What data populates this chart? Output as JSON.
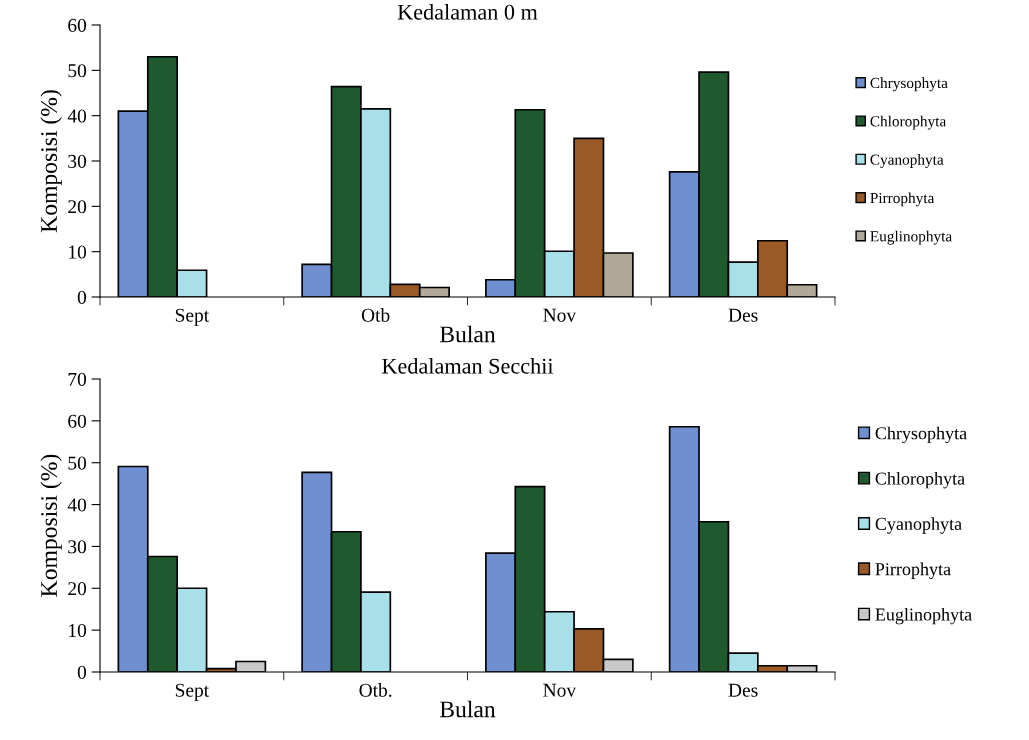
{
  "chart_data": [
    {
      "type": "bar",
      "title": "Kedalaman 0 m",
      "xlabel": "Bulan",
      "ylabel": "Komposisi (%)",
      "categories": [
        "Sept",
        "Otb",
        "Nov",
        "Des"
      ],
      "ylim": [
        0,
        60
      ],
      "yticks": [
        0,
        10,
        20,
        30,
        40,
        50,
        60
      ],
      "grid": false,
      "legend": "right",
      "series": [
        {
          "name": "Chrysophyta",
          "color": "#6f8fd0",
          "values": [
            41.0,
            7.2,
            3.8,
            27.6
          ]
        },
        {
          "name": "Chlorophyta",
          "color": "#1f5a2e",
          "values": [
            53,
            46.4,
            41.3,
            49.6
          ]
        },
        {
          "name": "Cyanophyta",
          "color": "#a8e0ea",
          "values": [
            5.9,
            41.5,
            10.1,
            7.7
          ]
        },
        {
          "name": "Pirrophyta",
          "color": "#9a5a28",
          "values": [
            null,
            2.8,
            35,
            12.4
          ]
        },
        {
          "name": "Euglinophyta",
          "color": "#b0a898",
          "values": [
            null,
            2.1,
            9.7,
            2.7
          ]
        }
      ]
    },
    {
      "type": "bar",
      "title": "Kedalaman Secchii",
      "xlabel": "Bulan",
      "ylabel": "Komposisi (%)",
      "categories": [
        "Sept",
        "Otb.",
        "Nov",
        "Des"
      ],
      "ylim": [
        0,
        70
      ],
      "yticks": [
        0,
        10,
        20,
        30,
        40,
        50,
        60,
        70
      ],
      "grid": false,
      "legend": "right",
      "series": [
        {
          "name": "Chrysophyta",
          "color": "#6f8fd0",
          "values": [
            49.1,
            47.7,
            28.4,
            58.6
          ]
        },
        {
          "name": "Chlorophyta",
          "color": "#1f5a2e",
          "values": [
            27.6,
            33.5,
            44.3,
            35.9
          ]
        },
        {
          "name": "Cyanophyta",
          "color": "#a8e0ea",
          "values": [
            20,
            19.1,
            14.4,
            4.5
          ]
        },
        {
          "name": "Pirrophyta",
          "color": "#9a5a28",
          "values": [
            0.8,
            null,
            10.3,
            1.5
          ]
        },
        {
          "name": "Euglinophyta",
          "color": "#c8c8c8",
          "values": [
            2.5,
            null,
            3,
            1.5
          ]
        }
      ]
    }
  ]
}
